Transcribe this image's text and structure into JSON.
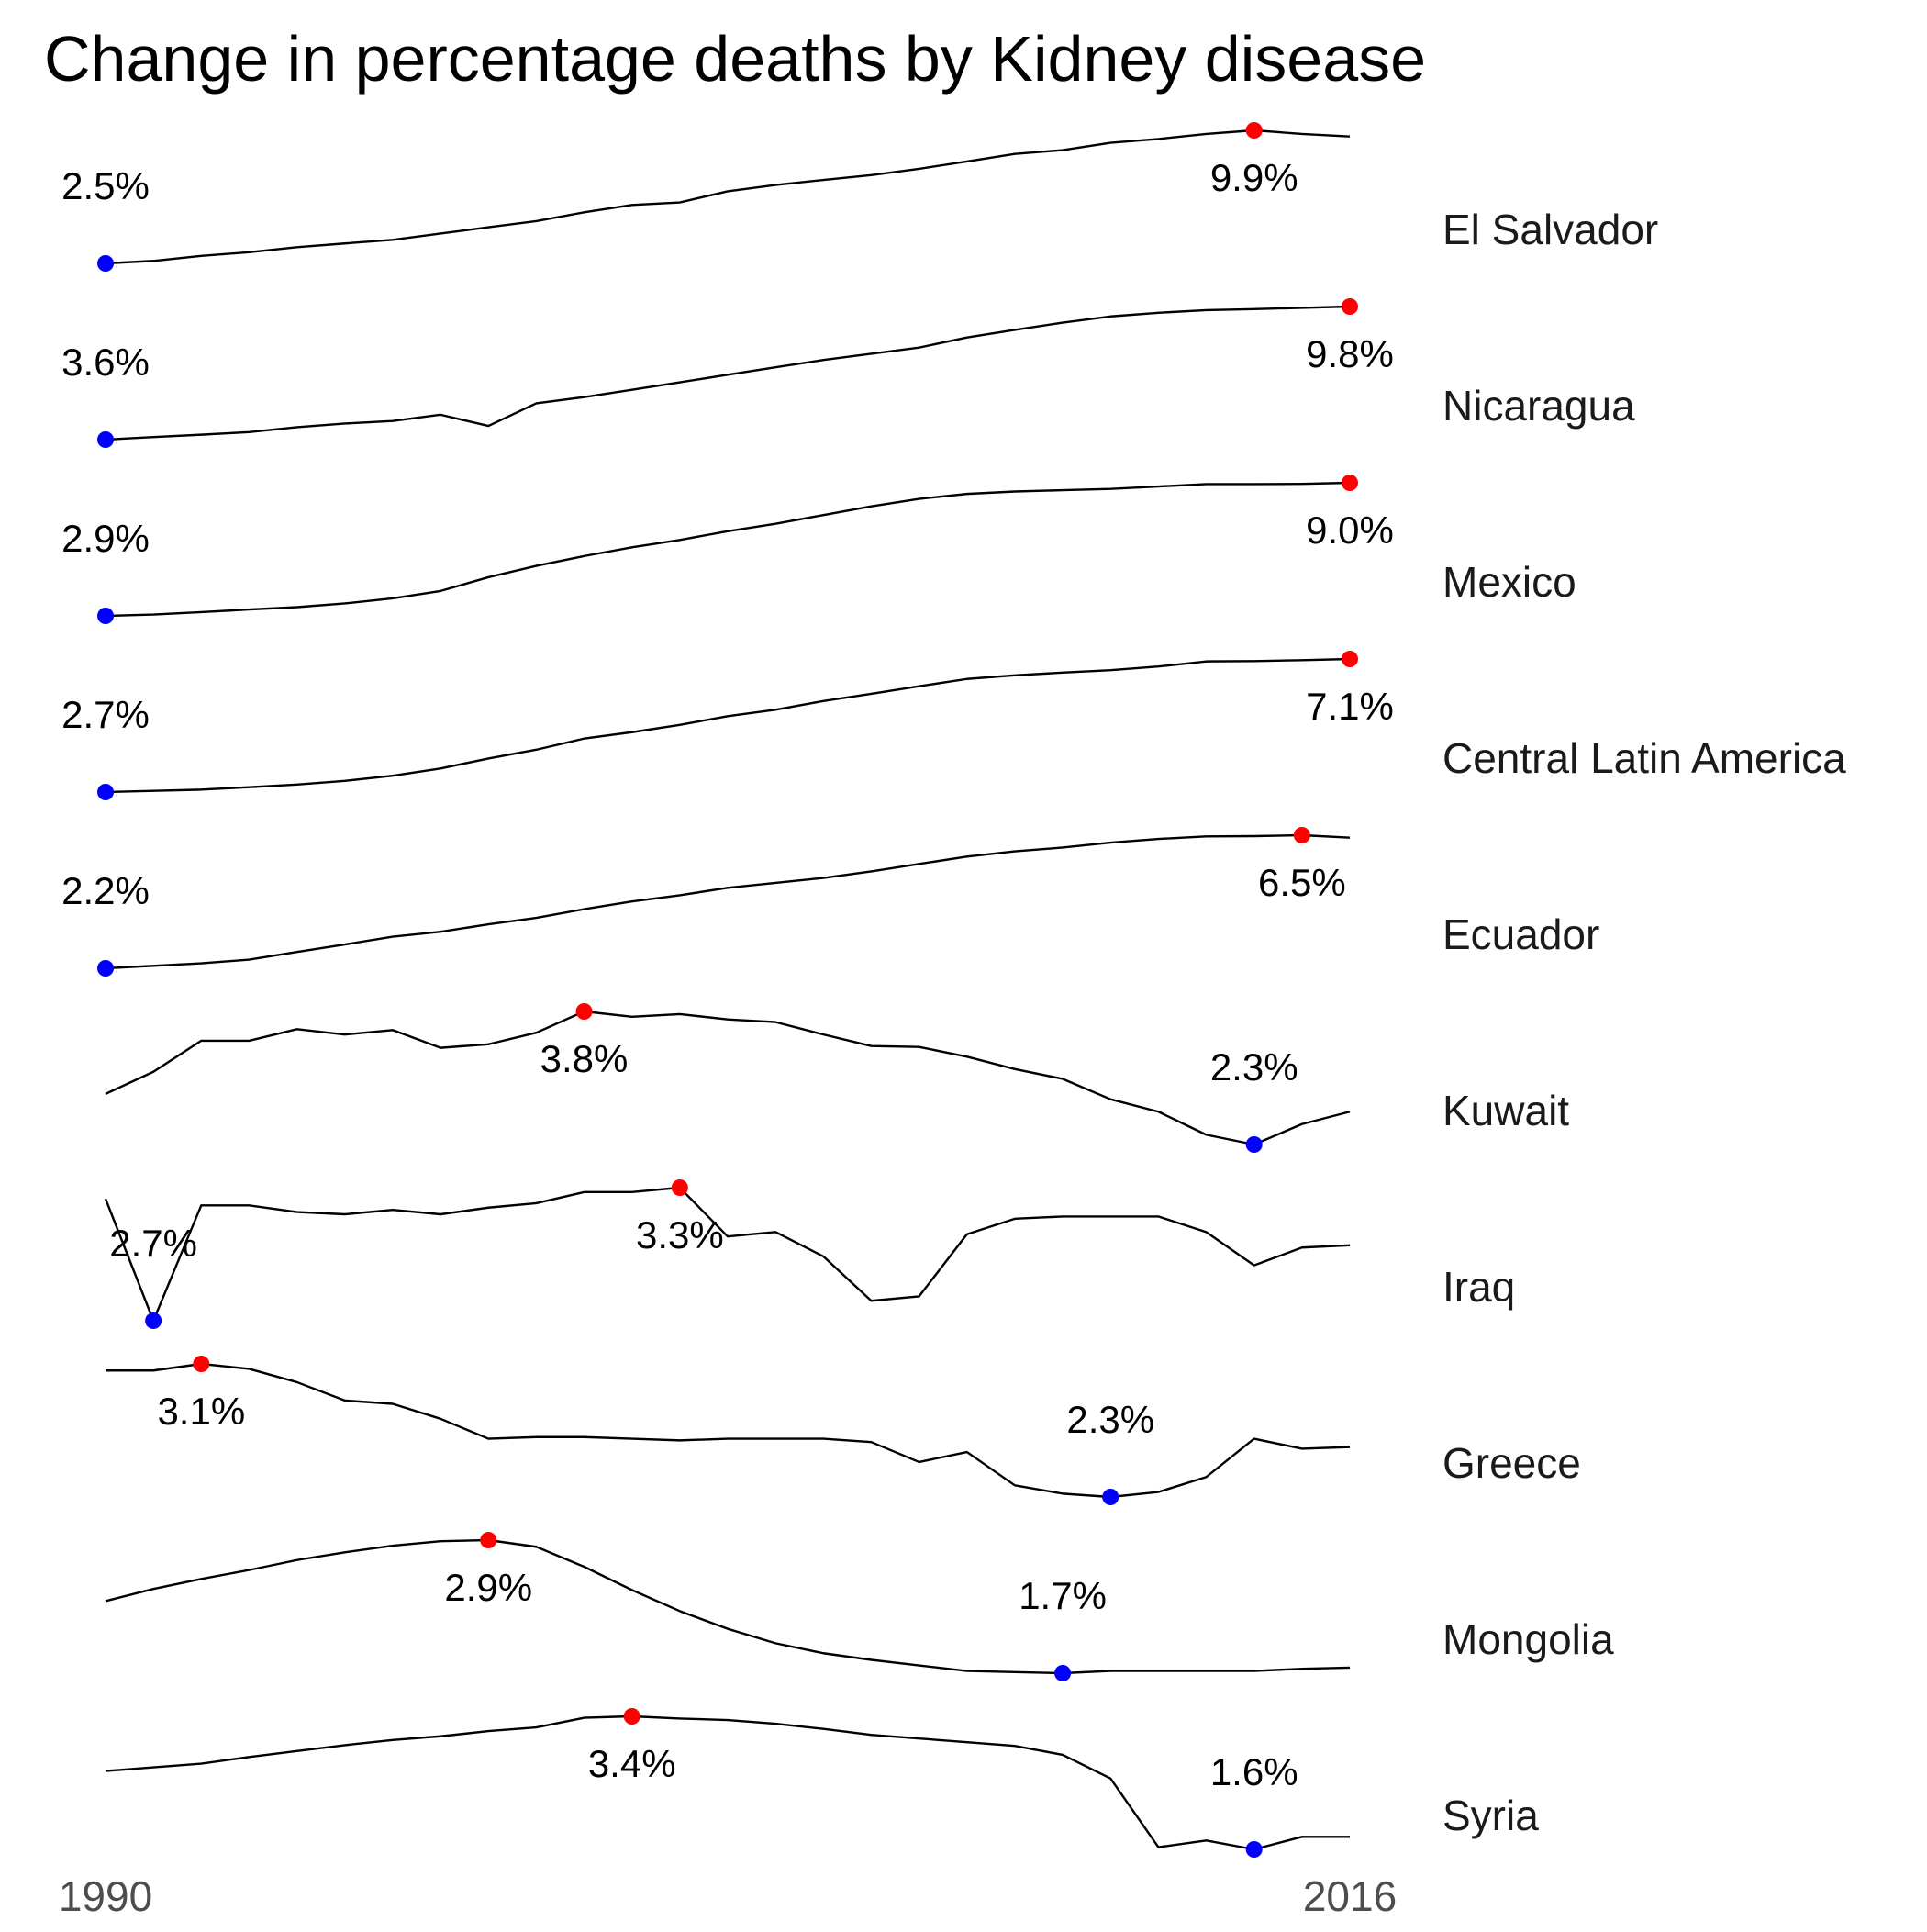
{
  "chart_data": {
    "type": "sparklines",
    "title": "Change in percentage deaths by Kidney disease",
    "x": [
      1990,
      1991,
      1992,
      1993,
      1994,
      1995,
      1996,
      1997,
      1998,
      1999,
      2000,
      2001,
      2002,
      2003,
      2004,
      2005,
      2006,
      2007,
      2008,
      2009,
      2010,
      2011,
      2012,
      2013,
      2014,
      2015,
      2016
    ],
    "xlim": [
      1990,
      2016
    ],
    "xticks": [
      1990,
      2016
    ],
    "line_color": "#000000",
    "min_color": "#0000ff",
    "max_color": "#ff0000",
    "series": [
      {
        "name": "El Salvador",
        "values": [
          2.5,
          2.64,
          2.92,
          3.12,
          3.4,
          3.61,
          3.81,
          4.16,
          4.51,
          4.85,
          5.34,
          5.75,
          5.89,
          6.51,
          6.86,
          7.14,
          7.41,
          7.76,
          8.17,
          8.59,
          8.8,
          9.21,
          9.42,
          9.7,
          9.9,
          9.7,
          9.56
        ],
        "value_labels": [
          "2.5%",
          null,
          null,
          null,
          null,
          null,
          null,
          null,
          null,
          null,
          null,
          null,
          null,
          null,
          null,
          null,
          null,
          null,
          null,
          null,
          null,
          null,
          null,
          null,
          "9.9%",
          null,
          null
        ]
      },
      {
        "name": "Nicaragua",
        "values": [
          3.6,
          3.72,
          3.83,
          3.95,
          4.18,
          4.35,
          4.47,
          4.76,
          4.24,
          5.29,
          5.58,
          5.92,
          6.27,
          6.62,
          6.97,
          7.31,
          7.6,
          7.89,
          8.36,
          8.71,
          9.05,
          9.34,
          9.51,
          9.63,
          9.68,
          9.74,
          9.8
        ],
        "value_labels": [
          "3.6%",
          null,
          null,
          null,
          null,
          null,
          null,
          null,
          null,
          null,
          null,
          null,
          null,
          null,
          null,
          null,
          null,
          null,
          null,
          null,
          null,
          null,
          null,
          null,
          null,
          null,
          "9.8%"
        ]
      },
      {
        "name": "Mexico",
        "values": [
          2.9,
          2.96,
          3.07,
          3.19,
          3.3,
          3.47,
          3.7,
          4.04,
          4.67,
          5.19,
          5.64,
          6.04,
          6.38,
          6.78,
          7.12,
          7.52,
          7.92,
          8.26,
          8.49,
          8.6,
          8.66,
          8.72,
          8.83,
          8.94,
          8.94,
          8.95,
          9.0
        ],
        "value_labels": [
          "2.9%",
          null,
          null,
          null,
          null,
          null,
          null,
          null,
          null,
          null,
          null,
          null,
          null,
          null,
          null,
          null,
          null,
          null,
          null,
          null,
          null,
          null,
          null,
          null,
          null,
          null,
          "9.0%"
        ]
      },
      {
        "name": "Central Latin America",
        "values": [
          2.7,
          2.74,
          2.78,
          2.86,
          2.95,
          3.07,
          3.24,
          3.48,
          3.81,
          4.1,
          4.47,
          4.68,
          4.92,
          5.21,
          5.42,
          5.71,
          5.95,
          6.2,
          6.44,
          6.56,
          6.65,
          6.73,
          6.85,
          7.02,
          7.03,
          7.06,
          7.1
        ],
        "value_labels": [
          "2.7%",
          null,
          null,
          null,
          null,
          null,
          null,
          null,
          null,
          null,
          null,
          null,
          null,
          null,
          null,
          null,
          null,
          null,
          null,
          null,
          null,
          null,
          null,
          null,
          null,
          null,
          "7.1%"
        ]
      },
      {
        "name": "Ecuador",
        "values": [
          2.2,
          2.28,
          2.36,
          2.48,
          2.73,
          2.97,
          3.22,
          3.38,
          3.62,
          3.83,
          4.11,
          4.36,
          4.56,
          4.8,
          4.96,
          5.12,
          5.33,
          5.57,
          5.81,
          5.98,
          6.1,
          6.26,
          6.38,
          6.46,
          6.47,
          6.5,
          6.42
        ],
        "value_labels": [
          "2.2%",
          null,
          null,
          null,
          null,
          null,
          null,
          null,
          null,
          null,
          null,
          null,
          null,
          null,
          null,
          null,
          null,
          null,
          null,
          null,
          null,
          null,
          null,
          null,
          null,
          "6.5%",
          null
        ]
      },
      {
        "name": "Kuwait",
        "values": [
          2.87,
          3.12,
          3.47,
          3.47,
          3.6,
          3.54,
          3.59,
          3.39,
          3.43,
          3.56,
          3.8,
          3.74,
          3.77,
          3.71,
          3.68,
          3.54,
          3.41,
          3.4,
          3.29,
          3.15,
          3.04,
          2.81,
          2.67,
          2.41,
          2.3,
          2.53,
          2.67
        ],
        "value_labels": [
          null,
          null,
          null,
          null,
          null,
          null,
          null,
          null,
          null,
          null,
          "3.8%",
          null,
          null,
          null,
          null,
          null,
          null,
          null,
          null,
          null,
          null,
          null,
          null,
          null,
          "2.3%",
          null,
          null
        ]
      },
      {
        "name": "Iraq",
        "values": [
          3.25,
          2.7,
          3.22,
          3.22,
          3.19,
          3.18,
          3.2,
          3.18,
          3.21,
          3.23,
          3.28,
          3.28,
          3.3,
          3.08,
          3.1,
          2.99,
          2.79,
          2.81,
          3.09,
          3.16,
          3.17,
          3.17,
          3.17,
          3.1,
          2.95,
          3.03,
          3.04
        ],
        "value_labels": [
          null,
          "2.7%",
          null,
          null,
          null,
          null,
          null,
          null,
          null,
          null,
          null,
          null,
          "3.3%",
          null,
          null,
          null,
          null,
          null,
          null,
          null,
          null,
          null,
          null,
          null,
          null,
          null,
          null
        ]
      },
      {
        "name": "Greece",
        "values": [
          3.06,
          3.06,
          3.1,
          3.07,
          2.99,
          2.88,
          2.86,
          2.77,
          2.65,
          2.66,
          2.66,
          2.65,
          2.64,
          2.65,
          2.65,
          2.65,
          2.63,
          2.51,
          2.57,
          2.37,
          2.32,
          2.3,
          2.33,
          2.42,
          2.65,
          2.59,
          2.6
        ],
        "value_labels": [
          null,
          null,
          "3.1%",
          null,
          null,
          null,
          null,
          null,
          null,
          null,
          null,
          null,
          null,
          null,
          null,
          null,
          null,
          null,
          null,
          null,
          null,
          "2.3%",
          null,
          null,
          null,
          null,
          null
        ]
      },
      {
        "name": "Mongolia",
        "values": [
          2.35,
          2.46,
          2.55,
          2.63,
          2.72,
          2.79,
          2.85,
          2.89,
          2.9,
          2.84,
          2.66,
          2.45,
          2.26,
          2.1,
          1.97,
          1.88,
          1.82,
          1.77,
          1.72,
          1.71,
          1.7,
          1.72,
          1.72,
          1.72,
          1.72,
          1.74,
          1.75
        ],
        "value_labels": [
          null,
          null,
          null,
          null,
          null,
          null,
          null,
          null,
          "2.9%",
          null,
          null,
          null,
          null,
          null,
          null,
          null,
          null,
          null,
          null,
          null,
          "1.7%",
          null,
          null,
          null,
          null,
          null,
          null
        ]
      },
      {
        "name": "Syria",
        "values": [
          2.66,
          2.71,
          2.76,
          2.85,
          2.93,
          3.01,
          3.08,
          3.13,
          3.2,
          3.25,
          3.38,
          3.4,
          3.37,
          3.35,
          3.3,
          3.23,
          3.15,
          3.1,
          3.05,
          3.0,
          2.88,
          2.56,
          1.63,
          1.72,
          1.6,
          1.77,
          1.77
        ],
        "value_labels": [
          null,
          null,
          null,
          null,
          null,
          null,
          null,
          null,
          null,
          null,
          null,
          "3.4%",
          null,
          null,
          null,
          null,
          null,
          null,
          null,
          null,
          null,
          null,
          null,
          null,
          "1.6%",
          null,
          null
        ]
      }
    ]
  }
}
